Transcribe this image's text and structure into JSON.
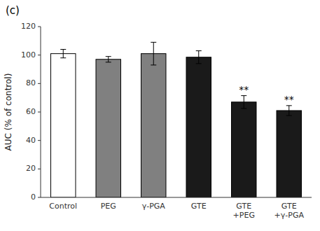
{
  "chart_data": {
    "type": "bar",
    "title": "(c)",
    "categories": [
      "Control",
      "PEG",
      "γ-PGA",
      "GTE",
      "GTE\n+PEG",
      "GTE\n+γ-PGA"
    ],
    "values": [
      101.0,
      97.0,
      101.0,
      98.5,
      67.0,
      61.0
    ],
    "errors": [
      3.0,
      2.0,
      8.0,
      4.5,
      4.5,
      3.5
    ],
    "colors": [
      "#ffffff",
      "#808080",
      "#808080",
      "#1a1a1a",
      "#1a1a1a",
      "#1a1a1a"
    ],
    "annotations": [
      {
        "text": "**",
        "category": "GTE\n+PEG"
      },
      {
        "text": "**",
        "category": "GTE\n+γ-PGA"
      }
    ],
    "ylabel": "AUC (% of control)",
    "ylim": [
      0,
      120
    ],
    "yticks": [
      0,
      20,
      40,
      60,
      80,
      100,
      120
    ],
    "grid": false
  }
}
